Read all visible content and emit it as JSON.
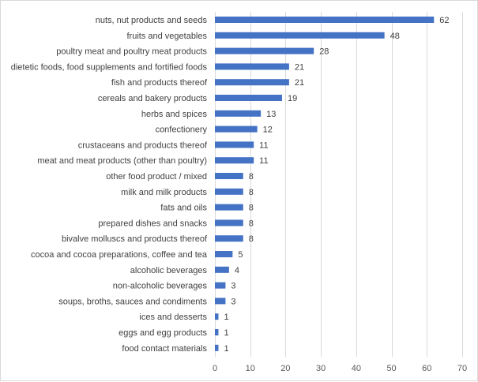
{
  "chart_data": {
    "type": "bar",
    "orientation": "horizontal",
    "categories": [
      "nuts, nut products and seeds",
      "fruits and vegetables",
      "poultry meat and poultry meat products",
      "dietetic foods, food supplements and fortified foods",
      "fish and products thereof",
      "cereals and bakery products",
      "herbs and spices",
      "confectionery",
      "crustaceans and products thereof",
      "meat and meat products (other than poultry)",
      "other food product / mixed",
      "milk and milk products",
      "fats and oils",
      "prepared dishes and snacks",
      "bivalve molluscs and products thereof",
      "cocoa and cocoa preparations, coffee and tea",
      "alcoholic beverages",
      "non-alcoholic beverages",
      "soups, broths, sauces and condiments",
      "ices and desserts",
      "eggs and egg products",
      "food contact materials"
    ],
    "values": [
      62,
      48,
      28,
      21,
      21,
      19,
      13,
      12,
      11,
      11,
      8,
      8,
      8,
      8,
      8,
      5,
      4,
      3,
      3,
      1,
      1,
      1
    ],
    "xlim": [
      0,
      70
    ],
    "xticks": [
      0,
      10,
      20,
      30,
      40,
      50,
      60,
      70
    ],
    "grid": "vertical",
    "data_labels": true,
    "colors": {
      "bar": "#4472c4",
      "grid": "#d9d9d9",
      "text": "#404040"
    }
  }
}
